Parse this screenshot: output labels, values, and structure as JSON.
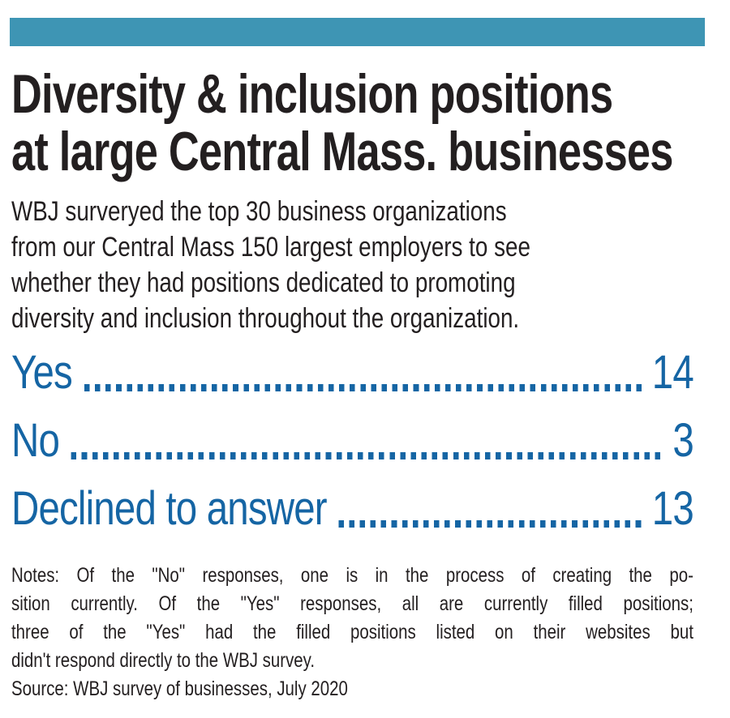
{
  "colors": {
    "accent_teal": "#3e95b4",
    "stat_blue": "#1565a4",
    "text_black": "#231f20"
  },
  "title": {
    "lines": [
      "Diversity & inclusion positions",
      "at large Central Mass. businesses"
    ]
  },
  "intro": {
    "lines": [
      "WBJ surveryed the top 30 business organizations",
      "from our Central Mass 150 largest employers to see",
      "whether they had positions dedicated to promoting",
      "diversity and inclusion throughout the organization."
    ]
  },
  "stats": [
    {
      "label": "Yes",
      "value": "14"
    },
    {
      "label": "No",
      "value": "3"
    },
    {
      "label": "Declined to answer",
      "value": "13"
    }
  ],
  "notes": {
    "lines": [
      "Notes: Of the \"No\" responses, one is in the process of creating the po-",
      "sition currently. Of the \"Yes\" responses, all are currently filled positions;",
      "three of the \"Yes\" had the filled positions listed on their websites but",
      "didn't respond directly to the WBJ survey."
    ]
  },
  "source": "Source: WBJ survey of businesses, July 2020",
  "chart_data": {
    "type": "table",
    "title": "Diversity & inclusion positions at large Central Mass. businesses",
    "subtitle": "WBJ surveryed the top 30 business organizations from our Central Mass 150 largest employers to see whether they had positions dedicated to promoting diversity and inclusion throughout the organization.",
    "categories": [
      "Yes",
      "No",
      "Declined to answer"
    ],
    "values": [
      14,
      3,
      13
    ],
    "total_surveyed": 30,
    "notes": "Of the \"No\" responses, one is in the process of creating the position currently. Of the \"Yes\" responses, all are currently filled positions; three of the \"Yes\" had the filled positions listed on their websites but didn't respond directly to the WBJ survey.",
    "source": "WBJ survey of businesses, July 2020"
  }
}
